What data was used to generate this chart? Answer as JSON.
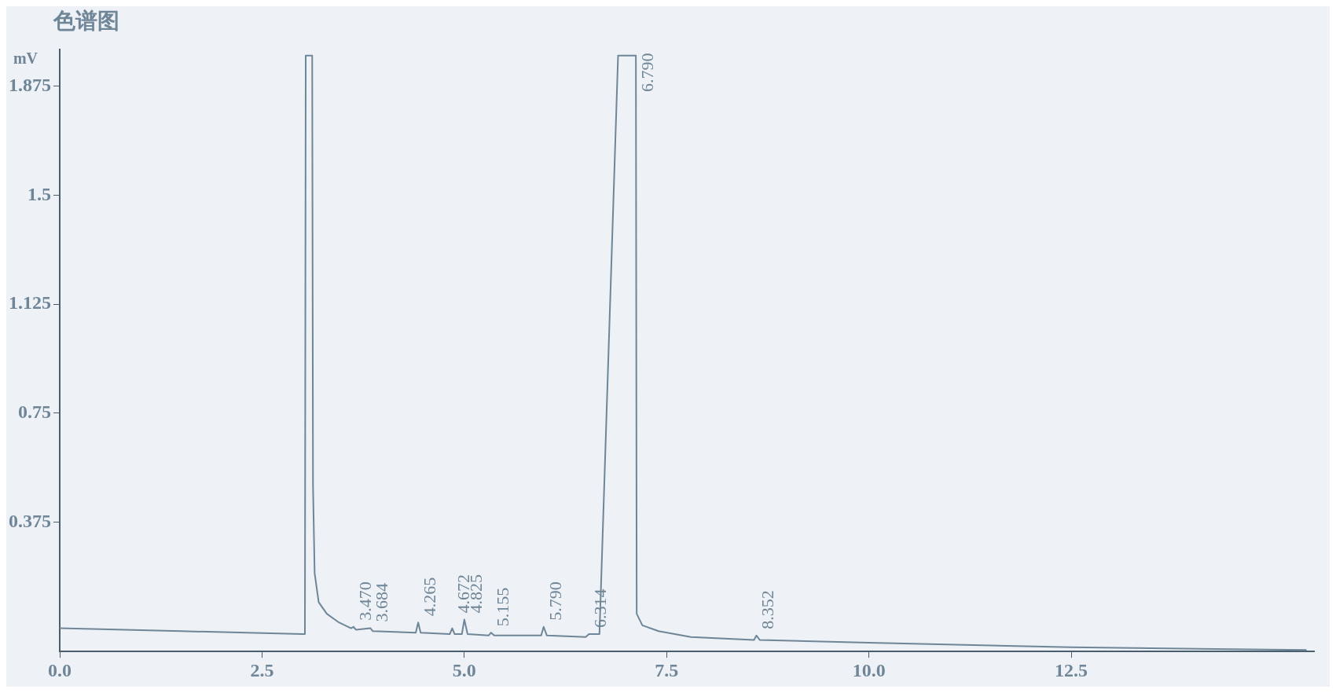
{
  "chart_data": {
    "type": "line",
    "title": "色谱图",
    "ylabel": "mV",
    "x": [
      0,
      1.5,
      3.0,
      3.03,
      3.04,
      3.12,
      3.13,
      3.15,
      3.2,
      3.3,
      3.45,
      3.6,
      3.63,
      3.66,
      3.84,
      3.87,
      4.4,
      4.43,
      4.46,
      4.82,
      4.85,
      4.88,
      4.97,
      5.0,
      5.04,
      5.3,
      5.33,
      5.37,
      5.95,
      5.98,
      6.02,
      6.5,
      6.54,
      6.67,
      6.9,
      7.12,
      7.13,
      7.2,
      7.4,
      7.8,
      8.58,
      8.61,
      8.65,
      10,
      12.5,
      15.4
    ],
    "series": [
      {
        "color": "#6f8698",
        "values": [
          0.01,
          0.0,
          -0.01,
          -0.01,
          1.98,
          1.98,
          0.5,
          0.2,
          0.1,
          0.06,
          0.03,
          0.01,
          0.015,
          0.005,
          0.01,
          0.0,
          -0.005,
          0.03,
          -0.005,
          -0.01,
          0.01,
          -0.01,
          -0.01,
          0.04,
          -0.01,
          -0.015,
          -0.005,
          -0.015,
          -0.015,
          0.015,
          -0.015,
          -0.02,
          -0.01,
          -0.01,
          1.98,
          1.98,
          0.06,
          0.02,
          0.0,
          -0.02,
          -0.03,
          -0.015,
          -0.03,
          -0.04,
          -0.055,
          -0.065
        ]
      }
    ],
    "xlim": [
      0,
      15.5
    ],
    "xticks": [
      {
        "value": 0,
        "label": "0.0"
      },
      {
        "value": 2.5,
        "label": "2.5"
      },
      {
        "value": 5,
        "label": "5.0"
      },
      {
        "value": 7.5,
        "label": "7.5"
      },
      {
        "value": 10,
        "label": "10.0"
      },
      {
        "value": 12.5,
        "label": "12.5"
      }
    ],
    "ylim": [
      -0.07,
      2.0
    ],
    "yticks": [
      0.375,
      0.75,
      1.125,
      1.5,
      1.875
    ],
    "grid": false,
    "legend": false,
    "marker": "none",
    "line_style": "solid",
    "annotations": [
      {
        "text": "3.470",
        "x": 3.63,
        "y": 0.015
      },
      {
        "text": "3.684",
        "x": 3.84,
        "y": 0.01
      },
      {
        "text": "4.265",
        "x": 4.43,
        "y": 0.03
      },
      {
        "text": "4.672",
        "x": 4.85,
        "y": 0.01
      },
      {
        "text": "4.825",
        "x": 5.0,
        "y": 0.04
      },
      {
        "text": "5.155",
        "x": 5.33,
        "y": -0.005
      },
      {
        "text": "5.790",
        "x": 5.98,
        "y": 0.015
      },
      {
        "text": "6.314",
        "x": 6.54,
        "y": -0.01
      },
      {
        "text": "6.790",
        "x": 7.12,
        "y": 1.98
      },
      {
        "text": "8.352",
        "x": 8.61,
        "y": -0.015
      }
    ]
  }
}
